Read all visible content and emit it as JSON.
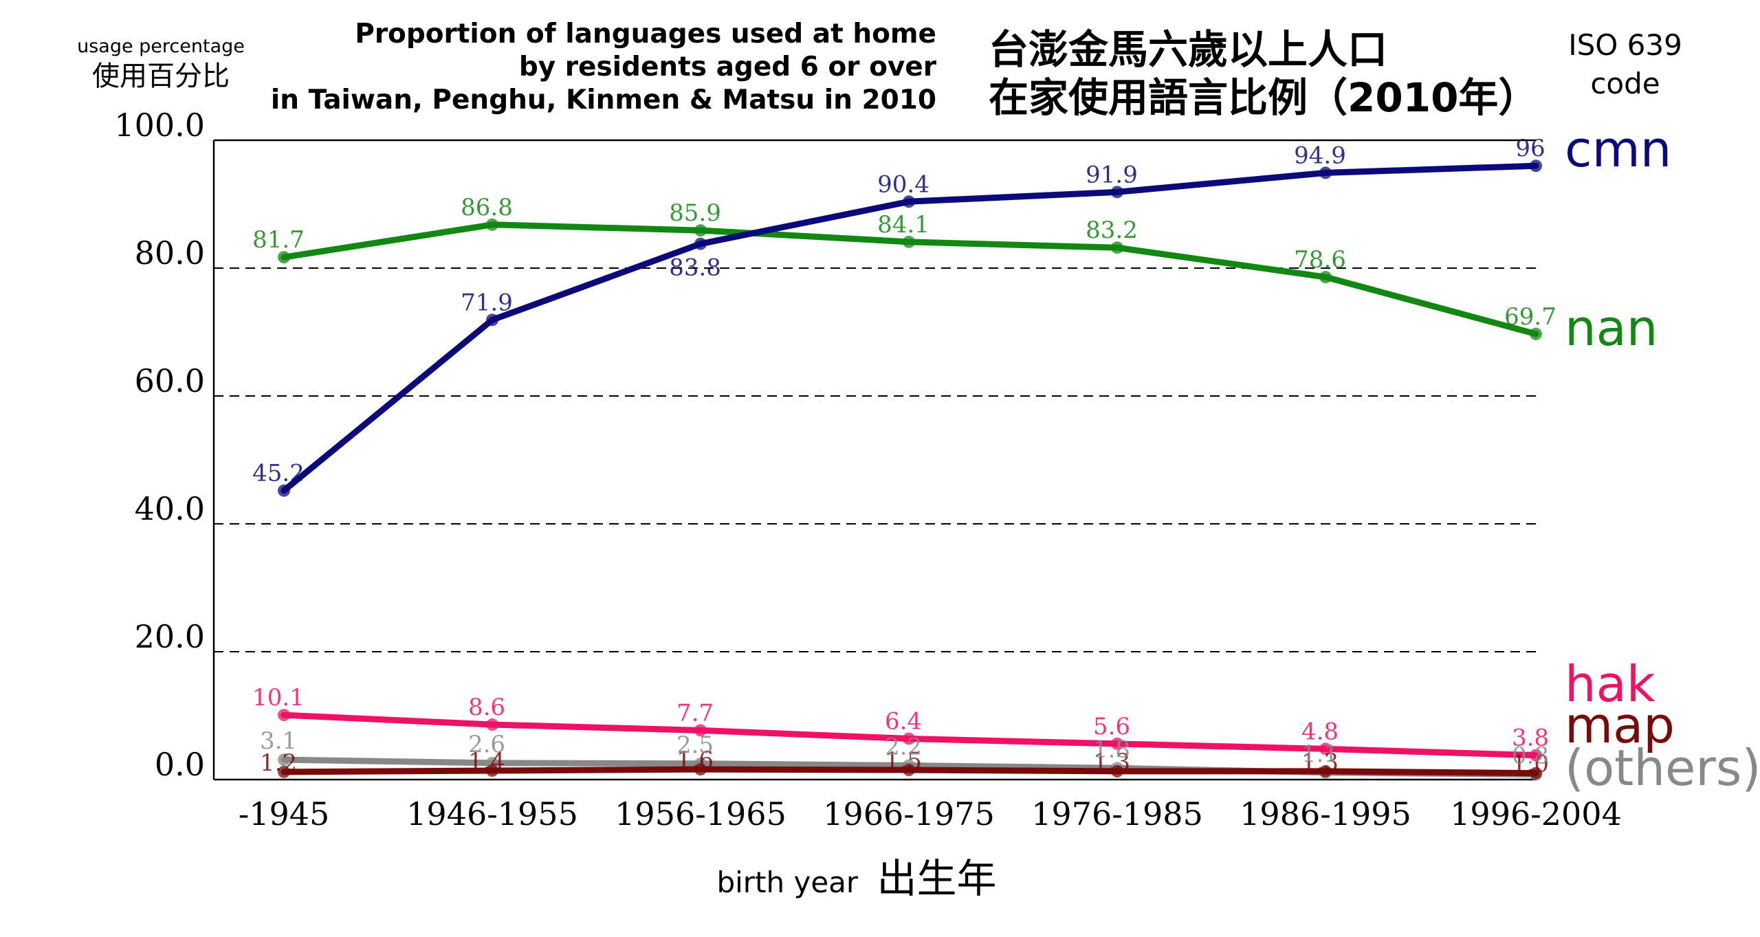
{
  "chart_data": {
    "type": "line",
    "title_en": [
      "Proportion of languages used at home",
      "by residents aged 6 or over",
      "in Taiwan, Penghu, Kinmen & Matsu in 2010"
    ],
    "title_zh": [
      "台澎金馬六歲以上人口",
      "在家使用語言比例（2010年）"
    ],
    "ylabel_en": "usage percentage",
    "ylabel_zh": "使用百分比",
    "xlabel_en": "birth year",
    "xlabel_zh": "出生年",
    "legend_header": [
      "ISO 639",
      "code"
    ],
    "categories": [
      "-1945",
      "1946-1955",
      "1956-1965",
      "1966-1975",
      "1976-1985",
      "1986-1995",
      "1996-2004"
    ],
    "ylim": [
      0,
      100
    ],
    "yticks": [
      "0.0",
      "20.0",
      "40.0",
      "60.0",
      "80.0",
      "100.0"
    ],
    "grid": "horizontal dashed at 20, 40, 60, 80",
    "legend_placement": "right, next to line ends",
    "series": [
      {
        "name": "cmn",
        "color": "#0a0a7a",
        "values": [
          45.2,
          71.9,
          83.8,
          90.4,
          91.9,
          94.9,
          96
        ],
        "labels": [
          "45.2",
          "71.9",
          "83.8",
          "90.4",
          "91.9",
          "94.9",
          "96"
        ]
      },
      {
        "name": "nan",
        "color": "#118811",
        "values": [
          81.7,
          86.8,
          85.9,
          84.1,
          83.2,
          78.6,
          69.7
        ],
        "labels": [
          "81.7",
          "86.8",
          "85.9",
          "84.1",
          "83.2",
          "78.6",
          "69.7"
        ]
      },
      {
        "name": "hak",
        "color": "#ee1166",
        "values": [
          10.1,
          8.6,
          7.7,
          6.4,
          5.6,
          4.8,
          3.8
        ],
        "labels": [
          "10.1",
          "8.6",
          "7.7",
          "6.4",
          "5.6",
          "4.8",
          "3.8"
        ]
      },
      {
        "name": "map",
        "color": "#7a0a0a",
        "values": [
          1.2,
          1.4,
          1.6,
          1.5,
          1.3,
          1.3,
          1.0
        ],
        "labels": [
          "1.2",
          "1.4",
          "1.6",
          "1.5",
          "1.3",
          "1.3",
          "1.0"
        ]
      },
      {
        "name": "(others)",
        "color": "#888888",
        "values": [
          3.1,
          2.6,
          2.5,
          2.2,
          1.8,
          1.1,
          0.8
        ],
        "labels": [
          "3.1",
          "2.6",
          "2.5",
          "2.2",
          "1.8",
          "1.1",
          "0.8"
        ]
      }
    ]
  }
}
